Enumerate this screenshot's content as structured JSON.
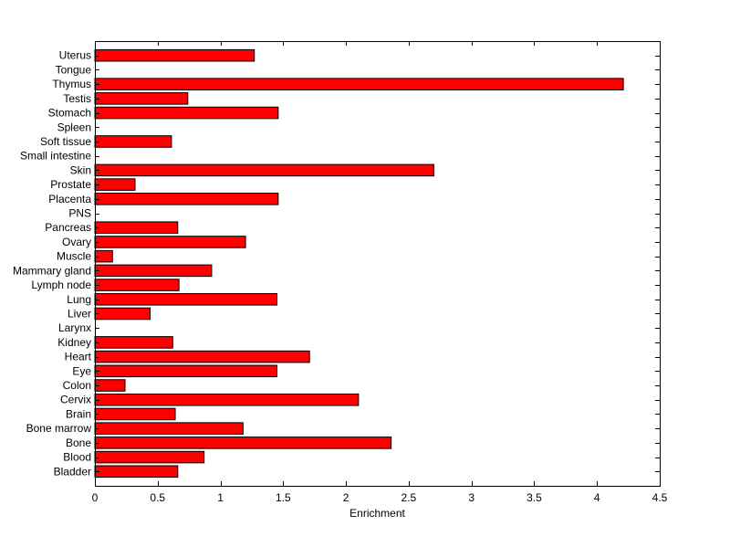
{
  "chart_data": {
    "type": "bar",
    "orientation": "horizontal",
    "title": "",
    "xlabel": "Enrichment",
    "ylabel": "",
    "xlim": [
      0,
      4.5
    ],
    "xticks": [
      "0",
      "0.5",
      "1",
      "1.5",
      "2",
      "2.5",
      "3",
      "3.5",
      "4",
      "4.5"
    ],
    "grid": false,
    "legend": "none",
    "bar_color": "#ff0000",
    "bar_edge_color": "#000000",
    "categories": [
      "Bladder",
      "Blood",
      "Bone",
      "Bone marrow",
      "Brain",
      "Cervix",
      "Colon",
      "Eye",
      "Heart",
      "Kidney",
      "Larynx",
      "Liver",
      "Lung",
      "Lymph node",
      "Mammary gland",
      "Muscle",
      "Ovary",
      "Pancreas",
      "PNS",
      "Placenta",
      "Prostate",
      "Skin",
      "Small intestine",
      "Soft tissue",
      "Spleen",
      "Stomach",
      "Testis",
      "Thymus",
      "Tongue",
      "Uterus"
    ],
    "values": [
      0.66,
      0.87,
      2.36,
      1.18,
      0.64,
      2.1,
      0.24,
      1.45,
      1.71,
      0.62,
      0,
      0.44,
      1.45,
      0.67,
      0.93,
      0.14,
      1.2,
      0.66,
      0,
      1.46,
      0.32,
      2.7,
      0,
      0.61,
      0,
      1.46,
      0.74,
      4.21,
      0,
      1.27
    ]
  }
}
